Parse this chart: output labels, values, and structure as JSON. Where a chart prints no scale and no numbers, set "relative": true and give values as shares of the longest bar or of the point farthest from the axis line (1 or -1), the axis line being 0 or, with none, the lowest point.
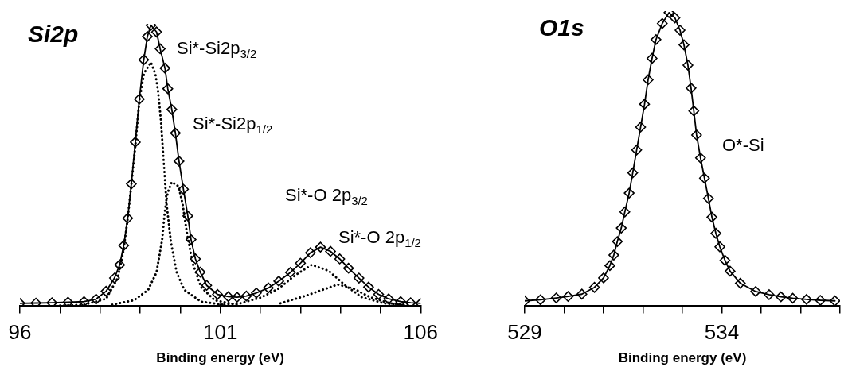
{
  "chart_data": [
    {
      "type": "line",
      "title": "Si2p",
      "xlabel": "Binding energy (eV)",
      "relative": true,
      "legend": false,
      "grid": false,
      "xlim": [
        96,
        106
      ],
      "xticks": [
        96,
        {
          "value": 97,
          "label": null
        },
        {
          "value": 98,
          "label": null
        },
        {
          "value": 99,
          "label": null
        },
        {
          "value": 100,
          "label": null
        },
        101,
        {
          "value": 102,
          "label": null
        },
        {
          "value": 103,
          "label": null
        },
        {
          "value": 104,
          "label": null
        },
        {
          "value": 105,
          "label": null
        },
        106
      ],
      "annotations": [
        "Si*-Si2p$_{3/2}$",
        "Si*-Si2p$_{1/2}$",
        "Si*-O 2p$_{3/2}$",
        "Si*-O 2p$_{1/2}$"
      ],
      "series": [
        {
          "color": "#000000",
          "marker": "diamond",
          "line_style": "solid",
          "x": [
            96.0,
            96.4,
            96.8,
            97.2,
            97.6,
            97.9,
            98.15,
            98.36,
            98.49,
            98.59,
            98.69,
            98.78,
            98.88,
            98.98,
            99.09,
            99.18,
            99.27,
            99.41,
            99.5,
            99.62,
            99.69,
            99.79,
            99.88,
            99.97,
            100.08,
            100.19,
            100.27,
            100.38,
            100.5,
            100.66,
            100.93,
            101.2,
            101.42,
            101.65,
            101.9,
            102.2,
            102.46,
            102.75,
            103.0,
            103.25,
            103.5,
            103.75,
            103.98,
            104.2,
            104.46,
            104.7,
            104.95,
            105.2,
            105.5,
            105.75,
            106.0
          ],
          "values": [
            0.01,
            0.011,
            0.012,
            0.014,
            0.016,
            0.025,
            0.053,
            0.1,
            0.147,
            0.216,
            0.313,
            0.435,
            0.584,
            0.737,
            0.877,
            0.96,
            1.0,
            0.976,
            0.916,
            0.847,
            0.774,
            0.7,
            0.616,
            0.516,
            0.416,
            0.321,
            0.237,
            0.168,
            0.121,
            0.074,
            0.042,
            0.034,
            0.032,
            0.036,
            0.047,
            0.065,
            0.089,
            0.12,
            0.153,
            0.19,
            0.21,
            0.195,
            0.168,
            0.135,
            0.1,
            0.068,
            0.042,
            0.026,
            0.016,
            0.012,
            0.01
          ]
        },
        {
          "color": "#000000",
          "marker": "none",
          "line_style": "dotted",
          "x": [
            97.0,
            97.6,
            98.15,
            98.44,
            98.58,
            98.68,
            98.78,
            98.88,
            98.98,
            99.1,
            99.27,
            99.38,
            99.45,
            99.52,
            99.59,
            99.66,
            99.77,
            99.91,
            100.1,
            100.52,
            101.07
          ],
          "values": [
            0.002,
            0.005,
            0.026,
            0.1,
            0.195,
            0.3,
            0.43,
            0.57,
            0.73,
            0.83,
            0.868,
            0.826,
            0.763,
            0.658,
            0.51,
            0.363,
            0.226,
            0.121,
            0.058,
            0.016,
            0.005
          ]
        },
        {
          "color": "#000000",
          "marker": "none",
          "line_style": "dotted",
          "x": [
            98.3,
            98.85,
            99.2,
            99.41,
            99.55,
            99.62,
            99.69,
            99.79,
            99.96,
            100.06,
            100.17,
            100.31,
            100.52,
            100.86,
            101.42
          ],
          "values": [
            0.005,
            0.021,
            0.058,
            0.121,
            0.237,
            0.342,
            0.405,
            0.442,
            0.426,
            0.363,
            0.258,
            0.153,
            0.068,
            0.021,
            0.005
          ]
        },
        {
          "color": "#000000",
          "marker": "none",
          "line_style": "dotted",
          "x": [
            101.0,
            101.5,
            102.0,
            102.46,
            102.87,
            103.28,
            103.7,
            104.12,
            104.53,
            105.09,
            105.6
          ],
          "values": [
            0.005,
            0.01,
            0.03,
            0.063,
            0.11,
            0.147,
            0.126,
            0.074,
            0.032,
            0.01,
            0.003
          ]
        },
        {
          "color": "#000000",
          "marker": "none",
          "line_style": "dotted",
          "x": [
            102.5,
            103.13,
            103.55,
            103.93,
            104.32,
            104.74,
            105.23,
            105.7
          ],
          "values": [
            0.01,
            0.037,
            0.058,
            0.077,
            0.063,
            0.032,
            0.01,
            0.003
          ]
        }
      ]
    },
    {
      "type": "line",
      "title": "O1s",
      "xlabel": "Binding energy (eV)",
      "relative": true,
      "legend": false,
      "grid": false,
      "xlim": [
        529,
        537
      ],
      "xticks": [
        529,
        {
          "value": 530,
          "label": null
        },
        {
          "value": 531,
          "label": null
        },
        {
          "value": 532,
          "label": null
        },
        {
          "value": 533,
          "label": null
        },
        534,
        {
          "value": 535,
          "label": null
        },
        {
          "value": 536,
          "label": null
        },
        {
          "value": 537,
          "label": null
        }
      ],
      "annotations": [
        "O*-Si"
      ],
      "series": [
        {
          "color": "#000000",
          "marker": "diamond",
          "line_style": "solid",
          "x": [
            529.0,
            529.4,
            529.8,
            530.1,
            530.45,
            530.77,
            531.0,
            531.16,
            531.26,
            531.35,
            531.45,
            531.54,
            531.65,
            531.74,
            531.84,
            531.94,
            532.04,
            532.13,
            532.23,
            532.33,
            532.49,
            532.66,
            532.81,
            532.94,
            533.04,
            533.14,
            533.22,
            533.29,
            533.36,
            533.46,
            533.56,
            533.66,
            533.75,
            533.85,
            533.95,
            534.08,
            534.21,
            534.47,
            534.86,
            535.2,
            535.5,
            535.8,
            536.15,
            536.5,
            536.87
          ],
          "values": [
            0.018,
            0.022,
            0.028,
            0.033,
            0.041,
            0.064,
            0.096,
            0.138,
            0.174,
            0.22,
            0.266,
            0.321,
            0.385,
            0.454,
            0.532,
            0.61,
            0.688,
            0.771,
            0.844,
            0.908,
            0.963,
            1.0,
            0.982,
            0.94,
            0.89,
            0.821,
            0.743,
            0.665,
            0.583,
            0.505,
            0.436,
            0.367,
            0.303,
            0.248,
            0.202,
            0.156,
            0.119,
            0.078,
            0.05,
            0.039,
            0.032,
            0.027,
            0.023,
            0.02,
            0.018
          ]
        }
      ]
    }
  ]
}
